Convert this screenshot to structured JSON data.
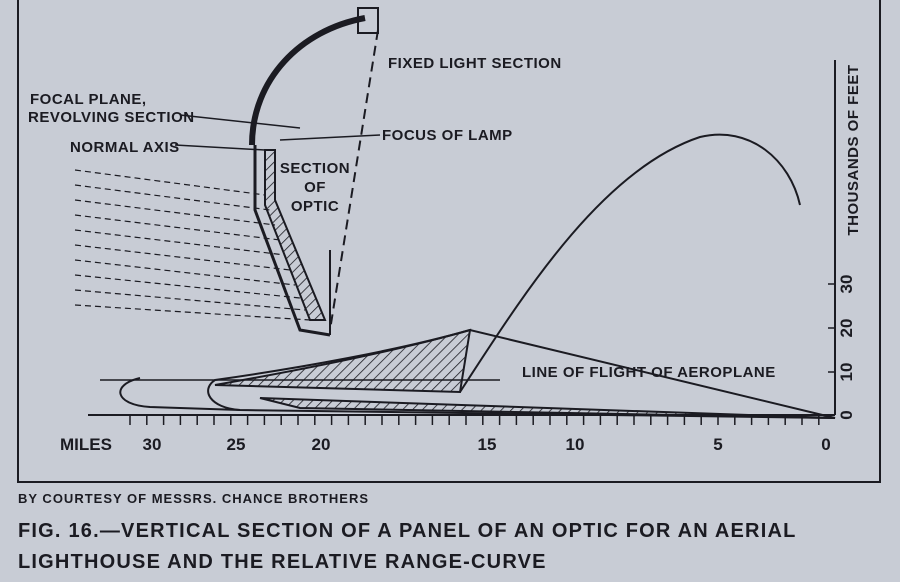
{
  "figure": {
    "labels": {
      "fixed_light": "FIXED LIGHT SECTION",
      "focal_plane": [
        "FOCAL PLANE,",
        "REVOLVING SECTION"
      ],
      "normal_axis": "NORMAL AXIS",
      "section": [
        "SECTION",
        "OF",
        "OPTIC"
      ],
      "focus": "FOCUS OF LAMP",
      "flight": "LINE OF FLIGHT OF AEROPLANE",
      "y_axis": "THOUSANDS OF FEET",
      "x_axis": "MILES"
    },
    "x_ticks": [
      30,
      25,
      20,
      15,
      10,
      5,
      0
    ],
    "y_ticks": [
      0,
      10,
      20,
      30
    ]
  },
  "credit": "BY COURTESY OF MESSRS. CHANCE BROTHERS",
  "caption": [
    "FIG. 16.—VERTICAL SECTION OF A PANEL OF AN OPTIC FOR AN AERIAL",
    "LIGHTHOUSE AND THE RELATIVE RANGE-CURVE"
  ]
}
